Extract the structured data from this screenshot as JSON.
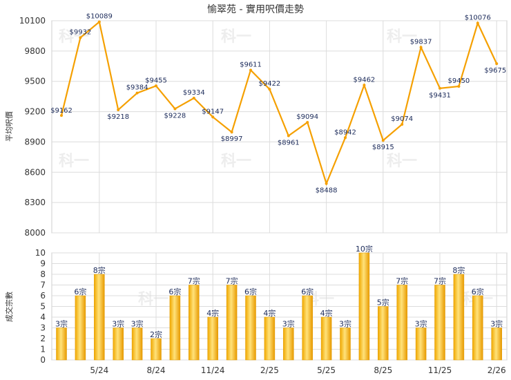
{
  "chart_data": [
    {
      "type": "line",
      "title": "愉翠苑 - 實用呎價走勢",
      "ylabel": "平均呎價",
      "ylim": [
        8000,
        10100
      ],
      "yticks": [
        8000,
        8300,
        8600,
        8900,
        9200,
        9500,
        9800,
        10100
      ],
      "x_tick_labels": [
        "5/24",
        "8/24",
        "11/24",
        "2/25",
        "5/25",
        "8/25",
        "11/25",
        "2/26"
      ],
      "series": [
        {
          "color": "#f5a000",
          "labels": [
            "$9162",
            "$9932",
            "$10089",
            "$9218",
            "$9384",
            "$9455",
            "$9228",
            "$9334",
            "$9147",
            "$8997",
            "$9611",
            "$9422",
            "$8961",
            "$9094",
            "$8488",
            "$8942",
            "$9462",
            "$8915",
            "$9074",
            "$9837",
            "$9431",
            "$9450",
            "$10076",
            "$9675"
          ],
          "values": [
            9162,
            9932,
            10089,
            9218,
            9384,
            9455,
            9228,
            9334,
            9147,
            8997,
            9611,
            9422,
            8961,
            9094,
            8488,
            8942,
            9462,
            8915,
            9074,
            9837,
            9431,
            9450,
            10076,
            9675
          ]
        }
      ],
      "grid": true
    },
    {
      "type": "bar",
      "ylabel": "成交宗數",
      "ylim": [
        0,
        10
      ],
      "yticks": [
        0,
        1,
        2,
        3,
        4,
        5,
        6,
        7,
        8,
        9,
        10
      ],
      "x_tick_labels": [
        "5/24",
        "8/24",
        "11/24",
        "2/25",
        "5/25",
        "8/25",
        "11/25",
        "2/26"
      ],
      "values": [
        3,
        6,
        8,
        3,
        3,
        2,
        6,
        7,
        4,
        7,
        6,
        4,
        3,
        6,
        4,
        3,
        10,
        5,
        7,
        3,
        7,
        8,
        6,
        3
      ],
      "labels": [
        "3宗",
        "6宗",
        "8宗",
        "3宗",
        "3宗",
        "2宗",
        "6宗",
        "7宗",
        "4宗",
        "7宗",
        "6宗",
        "4宗",
        "3宗",
        "6宗",
        "4宗",
        "3宗",
        "10宗",
        "5宗",
        "7宗",
        "3宗",
        "7宗",
        "8宗",
        "6宗",
        "3宗"
      ],
      "bar_color": "#f5b000",
      "grid": true
    }
  ],
  "watermark": "科一"
}
